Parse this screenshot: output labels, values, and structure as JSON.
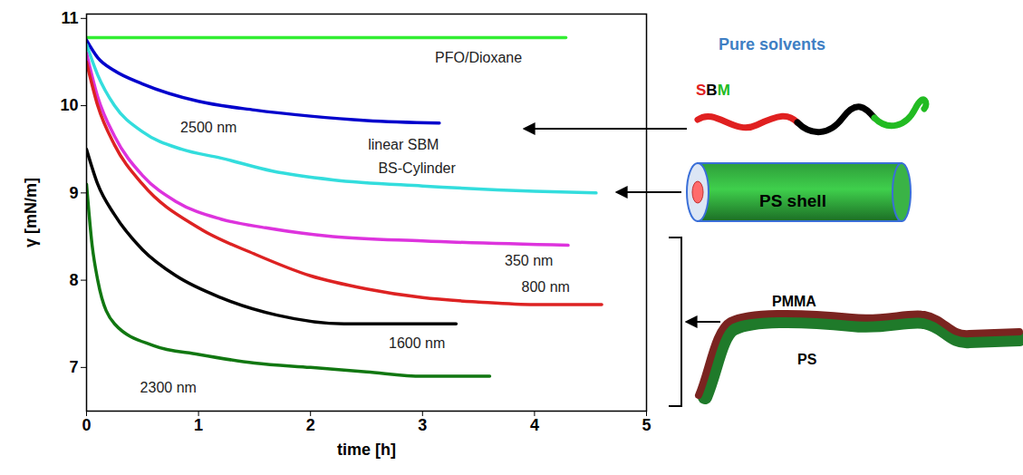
{
  "chart_data": {
    "type": "line",
    "x_label": "time [h]",
    "y_label": "γ [mN/m]",
    "xlim": [
      0,
      5
    ],
    "xticks": [
      0,
      1,
      2,
      3,
      4,
      5
    ],
    "ylim": [
      6.5,
      11.05
    ],
    "yticks": [
      7,
      8,
      9,
      10,
      11
    ],
    "grid": false,
    "series": [
      {
        "name": "PFO/Dioxane",
        "color": "#33ee33",
        "x": [
          0,
          4.28
        ],
        "values": [
          10.78,
          10.78
        ],
        "label_at": [
          3.5,
          10.55
        ]
      },
      {
        "name": "linear SBM",
        "color": "#0000cc",
        "x": [
          0,
          0.1,
          0.25,
          0.5,
          1,
          1.5,
          2,
          2.5,
          3.15
        ],
        "values": [
          10.75,
          10.55,
          10.4,
          10.25,
          10.05,
          9.95,
          9.88,
          9.83,
          9.8
        ],
        "label_at": [
          2.83,
          9.55
        ]
      },
      {
        "name": "BS-Cylinder",
        "color": "#33dddd",
        "x": [
          0,
          0.1,
          0.25,
          0.5,
          0.85,
          1.2,
          1.66,
          2.2,
          3,
          4,
          4.55
        ],
        "values": [
          10.7,
          10.35,
          10.0,
          9.7,
          9.5,
          9.4,
          9.25,
          9.15,
          9.08,
          9.02,
          9.0
        ],
        "label_at": [
          2.95,
          9.28
        ]
      },
      {
        "name": "350 nm",
        "color": "#dd33dd",
        "x": [
          0,
          0.1,
          0.25,
          0.5,
          0.8,
          1.2,
          1.6,
          2.2,
          3,
          4.3
        ],
        "values": [
          10.6,
          10.1,
          9.65,
          9.2,
          8.9,
          8.7,
          8.6,
          8.5,
          8.45,
          8.4
        ],
        "label_at": [
          3.95,
          8.22
        ]
      },
      {
        "name": "800 nm",
        "color": "#dd2222",
        "x": [
          0,
          0.1,
          0.25,
          0.5,
          1,
          1.5,
          2,
          2.5,
          3,
          3.5,
          4,
          4.6
        ],
        "values": [
          10.5,
          10.0,
          9.55,
          9.1,
          8.6,
          8.3,
          8.05,
          7.9,
          7.8,
          7.75,
          7.72,
          7.72
        ],
        "label_at": [
          4.1,
          7.92
        ]
      },
      {
        "name": "1600 nm",
        "color": "#000000",
        "x": [
          0,
          0.1,
          0.25,
          0.5,
          0.8,
          1.2,
          1.7,
          2.3,
          3.3
        ],
        "values": [
          9.5,
          9.1,
          8.75,
          8.35,
          8.05,
          7.8,
          7.6,
          7.5,
          7.5
        ],
        "label_at": [
          2.95,
          7.28
        ]
      },
      {
        "name": "2300 nm",
        "color": "#117711",
        "x": [
          0,
          0.05,
          0.1,
          0.25,
          0.6,
          1,
          1.5,
          2,
          2.5,
          3,
          3.6
        ],
        "values": [
          9.1,
          8.4,
          8.0,
          7.5,
          7.25,
          7.15,
          7.05,
          7.0,
          6.95,
          6.9,
          6.9
        ],
        "label_at": [
          0.73,
          6.77
        ]
      }
    ],
    "annotations": [
      {
        "text": "2500 nm",
        "x": 1.09,
        "y": 9.75
      }
    ]
  },
  "diagram": {
    "heading": "Pure solvents",
    "chain_letters": [
      {
        "text": "S",
        "color": "#e02020"
      },
      {
        "text": "B",
        "color": "#000000"
      },
      {
        "text": "M",
        "color": "#22bb22"
      }
    ],
    "cylinder_label": "PS shell",
    "strip_labels": [
      "PMMA",
      "PS"
    ]
  }
}
